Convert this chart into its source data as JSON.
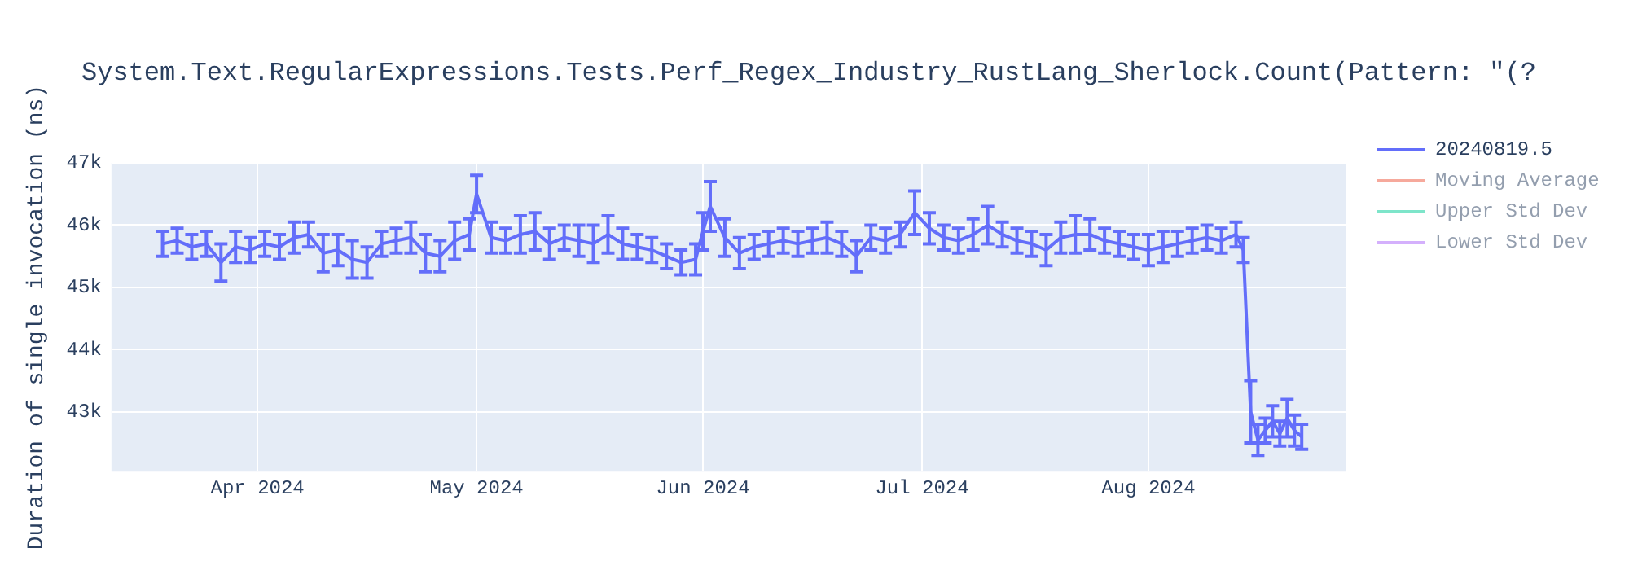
{
  "chart_data": {
    "type": "line",
    "title": "System.Text.RegularExpressions.Tests.Perf_Regex_Industry_RustLang_Sherlock.Count(Pattern: \"(?",
    "ylabel": "Duration of single invocation (ns)",
    "x": [
      "2024-03-19",
      "2024-03-21",
      "2024-03-23",
      "2024-03-25",
      "2024-03-27",
      "2024-03-29",
      "2024-03-31",
      "2024-04-02",
      "2024-04-04",
      "2024-04-06",
      "2024-04-08",
      "2024-04-10",
      "2024-04-12",
      "2024-04-14",
      "2024-04-16",
      "2024-04-18",
      "2024-04-20",
      "2024-04-22",
      "2024-04-24",
      "2024-04-26",
      "2024-04-28",
      "2024-04-30",
      "2024-05-01",
      "2024-05-03",
      "2024-05-05",
      "2024-05-07",
      "2024-05-09",
      "2024-05-11",
      "2024-05-13",
      "2024-05-15",
      "2024-05-17",
      "2024-05-19",
      "2024-05-21",
      "2024-05-23",
      "2024-05-25",
      "2024-05-27",
      "2024-05-29",
      "2024-05-31",
      "2024-06-01",
      "2024-06-02",
      "2024-06-04",
      "2024-06-06",
      "2024-06-08",
      "2024-06-10",
      "2024-06-12",
      "2024-06-14",
      "2024-06-16",
      "2024-06-18",
      "2024-06-20",
      "2024-06-22",
      "2024-06-24",
      "2024-06-26",
      "2024-06-28",
      "2024-06-30",
      "2024-07-02",
      "2024-07-04",
      "2024-07-06",
      "2024-07-08",
      "2024-07-10",
      "2024-07-12",
      "2024-07-14",
      "2024-07-16",
      "2024-07-18",
      "2024-07-20",
      "2024-07-22",
      "2024-07-24",
      "2024-07-26",
      "2024-07-28",
      "2024-07-30",
      "2024-08-01",
      "2024-08-03",
      "2024-08-05",
      "2024-08-07",
      "2024-08-09",
      "2024-08-11",
      "2024-08-13",
      "2024-08-14",
      "2024-08-15",
      "2024-08-16",
      "2024-08-17",
      "2024-08-18",
      "2024-08-19",
      "2024-08-20",
      "2024-08-21",
      "2024-08-22"
    ],
    "xlim": [
      "2024-03-12",
      "2024-08-28"
    ],
    "xticks": [
      {
        "value": "2024-04-01",
        "label": "Apr 2024"
      },
      {
        "value": "2024-05-01",
        "label": "May 2024"
      },
      {
        "value": "2024-06-01",
        "label": "Jun 2024"
      },
      {
        "value": "2024-07-01",
        "label": "Jul 2024"
      },
      {
        "value": "2024-08-01",
        "label": "Aug 2024"
      }
    ],
    "ylim": [
      42040,
      47000
    ],
    "yticks": [
      {
        "value": 43000,
        "label": "43k"
      },
      {
        "value": 44000,
        "label": "44k"
      },
      {
        "value": 45000,
        "label": "45k"
      },
      {
        "value": 46000,
        "label": "46k"
      },
      {
        "value": 47000,
        "label": "47k"
      }
    ],
    "series": [
      {
        "name": "20240819.5",
        "color": "#636efa",
        "values": [
          45700,
          45750,
          45650,
          45700,
          45400,
          45650,
          45600,
          45700,
          45650,
          45800,
          45850,
          45550,
          45600,
          45450,
          45400,
          45700,
          45750,
          45800,
          45550,
          45500,
          45750,
          45850,
          46500,
          45800,
          45750,
          45850,
          45900,
          45700,
          45800,
          45750,
          45700,
          45850,
          45700,
          45650,
          45600,
          45500,
          45400,
          45450,
          45900,
          46300,
          45800,
          45550,
          45650,
          45700,
          45750,
          45700,
          45750,
          45800,
          45700,
          45500,
          45800,
          45750,
          45850,
          46200,
          45950,
          45800,
          45750,
          45850,
          46000,
          45850,
          45750,
          45700,
          45600,
          45800,
          45850,
          45850,
          45750,
          45700,
          45650,
          45600,
          45650,
          45700,
          45750,
          45800,
          45750,
          45850,
          45600,
          43000,
          42550,
          42700,
          42850,
          42650,
          42900,
          42700,
          42600
        ],
        "errors": [
          200,
          200,
          200,
          200,
          300,
          250,
          200,
          200,
          200,
          250,
          200,
          300,
          250,
          300,
          250,
          200,
          200,
          250,
          300,
          250,
          300,
          250,
          300,
          250,
          200,
          300,
          300,
          250,
          200,
          250,
          300,
          300,
          250,
          200,
          200,
          200,
          200,
          250,
          300,
          400,
          300,
          250,
          200,
          200,
          200,
          200,
          200,
          250,
          200,
          250,
          200,
          200,
          200,
          350,
          250,
          200,
          200,
          250,
          300,
          200,
          200,
          200,
          250,
          250,
          300,
          250,
          200,
          200,
          200,
          250,
          250,
          200,
          200,
          200,
          200,
          200,
          200,
          500,
          250,
          200,
          250,
          200,
          300,
          250,
          200
        ]
      },
      {
        "name": "Moving Average",
        "color": "#ef553b",
        "values": [
          null,
          null,
          null,
          null,
          null,
          null,
          null,
          null,
          null,
          null,
          null,
          null,
          null,
          null,
          null,
          null,
          null,
          null,
          null,
          null,
          null,
          null,
          null,
          null,
          null,
          null,
          null,
          null,
          null,
          null,
          null,
          null,
          null,
          null,
          null,
          null,
          null,
          null,
          null,
          null,
          null,
          null,
          null,
          null,
          null,
          null,
          null,
          null,
          null,
          null,
          null,
          null,
          null,
          null,
          null,
          null,
          null,
          null,
          null,
          null,
          null,
          null,
          null,
          null,
          null,
          null,
          null,
          null,
          null,
          null,
          null,
          null,
          null,
          null,
          null,
          null,
          null,
          null,
          null,
          null,
          null,
          null,
          null,
          null,
          null
        ]
      },
      {
        "name": "Upper Std Dev",
        "color": "#00cc96",
        "values": [
          null,
          null,
          null,
          null,
          null,
          null,
          null,
          null,
          null,
          null,
          null,
          null,
          null,
          null,
          null,
          null,
          null,
          null,
          null,
          null,
          null,
          null,
          null,
          null,
          null,
          null,
          null,
          null,
          null,
          null,
          null,
          null,
          null,
          null,
          null,
          null,
          null,
          null,
          null,
          null,
          null,
          null,
          null,
          null,
          null,
          null,
          null,
          null,
          null,
          null,
          null,
          null,
          null,
          null,
          null,
          null,
          null,
          null,
          null,
          null,
          null,
          null,
          null,
          null,
          null,
          null,
          null,
          null,
          null,
          null,
          null,
          null,
          null,
          null,
          null,
          null,
          null,
          null,
          null,
          null,
          null,
          null,
          null,
          null,
          null
        ]
      },
      {
        "name": "Lower Std Dev",
        "color": "#ab63fa",
        "values": [
          null,
          null,
          null,
          null,
          null,
          null,
          null,
          null,
          null,
          null,
          null,
          null,
          null,
          null,
          null,
          null,
          null,
          null,
          null,
          null,
          null,
          null,
          null,
          null,
          null,
          null,
          null,
          null,
          null,
          null,
          null,
          null,
          null,
          null,
          null,
          null,
          null,
          null,
          null,
          null,
          null,
          null,
          null,
          null,
          null,
          null,
          null,
          null,
          null,
          null,
          null,
          null,
          null,
          null,
          null,
          null,
          null,
          null,
          null,
          null,
          null,
          null,
          null,
          null,
          null,
          null,
          null,
          null,
          null,
          null,
          null,
          null,
          null,
          null,
          null,
          null,
          null,
          null,
          null,
          null,
          null,
          null,
          null,
          null,
          null
        ]
      }
    ],
    "grid": true,
    "legend": "top right",
    "marker": "none",
    "line_style": "solid"
  }
}
